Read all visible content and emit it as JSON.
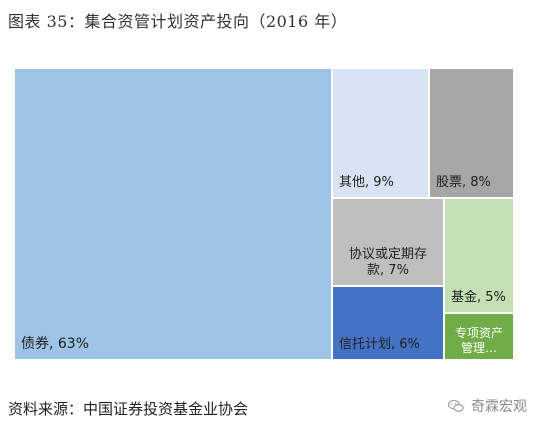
{
  "title": "图表 35：集合资管计划资产投向（2016 年）",
  "source": "资料来源：中国证券投资基金业协会",
  "watermark": "奇霖宏观",
  "chart_data": {
    "type": "treemap",
    "unit": "%",
    "categories": [
      {
        "label": "债券, 63%",
        "value": 63,
        "color": "#9dc3e6",
        "text_color": "#1f1f1f"
      },
      {
        "label": "其他, 9%",
        "value": 9,
        "color": "#dae3f3",
        "text_color": "#1f1f1f"
      },
      {
        "label": "股票, 8%",
        "value": 8,
        "color": "#a6a6a6",
        "text_color": "#1f1f1f"
      },
      {
        "label": "协议或定期存款, 7%",
        "value": 7,
        "color": "#bfbfbf",
        "text_color": "#1f1f1f",
        "display_lines": [
          "协议或定期存",
          "款, 7%"
        ]
      },
      {
        "label": "信托计划, 6%",
        "value": 6,
        "color": "#4472c4",
        "text_color": "#1f1f1f"
      },
      {
        "label": "基金, 5%",
        "value": 5,
        "color": "#c5e0b4",
        "text_color": "#1f1f1f"
      },
      {
        "label": "专项资产管理…",
        "value": 2,
        "color": "#70ad47",
        "text_color": "#ffffff",
        "display_lines": [
          "专项资产",
          "管理…"
        ]
      }
    ]
  }
}
